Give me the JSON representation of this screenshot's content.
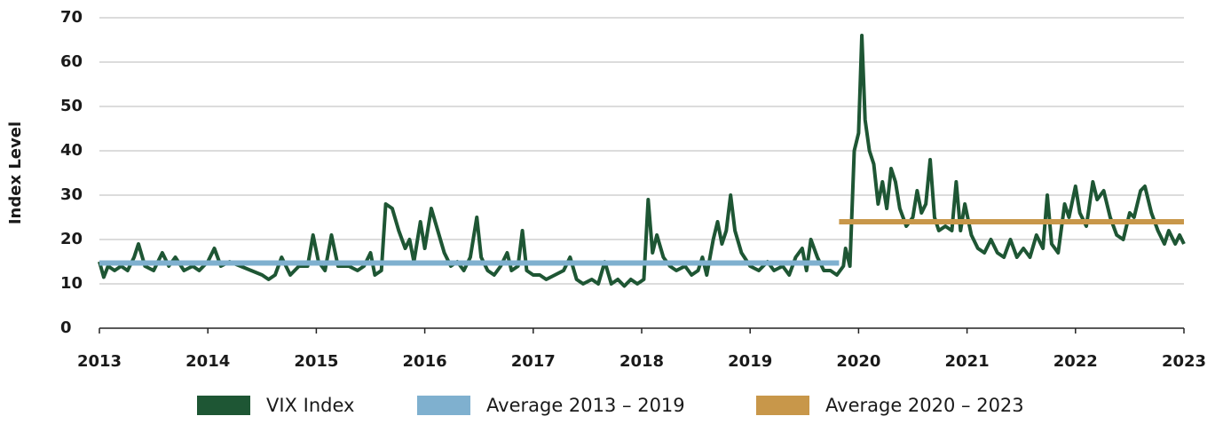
{
  "chart_data": {
    "type": "line",
    "y_label": "Index Level",
    "xlim": [
      2013,
      2023
    ],
    "xticks": [
      2013,
      2014,
      2015,
      2016,
      2017,
      2018,
      2019,
      2020,
      2021,
      2022,
      2023
    ],
    "ylim": [
      0,
      70
    ],
    "yticks": [
      0,
      10,
      20,
      30,
      40,
      50,
      60,
      70
    ],
    "grid": true,
    "series": [
      {
        "name": "VIX Index",
        "color": "#1e5634",
        "x": [
          2013.0,
          2013.04,
          2013.08,
          2013.14,
          2013.2,
          2013.26,
          2013.32,
          2013.36,
          2013.42,
          2013.5,
          2013.58,
          2013.64,
          2013.7,
          2013.78,
          2013.86,
          2013.92,
          2014.0,
          2014.06,
          2014.12,
          2014.2,
          2014.3,
          2014.4,
          2014.5,
          2014.56,
          2014.62,
          2014.68,
          2014.76,
          2014.84,
          2014.92,
          2014.97,
          2015.02,
          2015.08,
          2015.14,
          2015.2,
          2015.3,
          2015.38,
          2015.44,
          2015.5,
          2015.54,
          2015.6,
          2015.64,
          2015.7,
          2015.76,
          2015.82,
          2015.86,
          2015.9,
          2015.96,
          2016.0,
          2016.06,
          2016.12,
          2016.18,
          2016.24,
          2016.3,
          2016.36,
          2016.42,
          2016.48,
          2016.52,
          2016.58,
          2016.64,
          2016.7,
          2016.76,
          2016.8,
          2016.86,
          2016.9,
          2016.94,
          2017.0,
          2017.06,
          2017.12,
          2017.2,
          2017.28,
          2017.34,
          2017.4,
          2017.46,
          2017.54,
          2017.6,
          2017.66,
          2017.72,
          2017.78,
          2017.84,
          2017.9,
          2017.96,
          2018.02,
          2018.06,
          2018.1,
          2018.14,
          2018.2,
          2018.26,
          2018.32,
          2018.4,
          2018.46,
          2018.52,
          2018.56,
          2018.6,
          2018.66,
          2018.7,
          2018.74,
          2018.78,
          2018.82,
          2018.86,
          2018.92,
          2019.0,
          2019.08,
          2019.16,
          2019.22,
          2019.3,
          2019.36,
          2019.42,
          2019.48,
          2019.52,
          2019.56,
          2019.62,
          2019.68,
          2019.74,
          2019.8,
          2019.86,
          2019.88,
          2019.92,
          2019.96,
          2020.0,
          2020.03,
          2020.06,
          2020.1,
          2020.14,
          2020.18,
          2020.22,
          2020.26,
          2020.3,
          2020.34,
          2020.38,
          2020.44,
          2020.5,
          2020.54,
          2020.58,
          2020.62,
          2020.66,
          2020.7,
          2020.74,
          2020.8,
          2020.86,
          2020.9,
          2020.94,
          2020.98,
          2021.04,
          2021.1,
          2021.16,
          2021.22,
          2021.28,
          2021.34,
          2021.4,
          2021.46,
          2021.52,
          2021.58,
          2021.64,
          2021.7,
          2021.74,
          2021.78,
          2021.84,
          2021.9,
          2021.94,
          2022.0,
          2022.04,
          2022.1,
          2022.16,
          2022.2,
          2022.26,
          2022.32,
          2022.38,
          2022.44,
          2022.5,
          2022.54,
          2022.6,
          2022.64,
          2022.7,
          2022.76,
          2022.82,
          2022.86,
          2022.92,
          2022.96,
          2023.0
        ],
        "values": [
          15,
          11.5,
          14,
          13,
          14,
          13,
          16,
          19,
          14,
          13,
          17,
          14,
          16,
          13,
          14,
          13,
          15,
          18,
          14,
          15,
          14,
          13,
          12,
          11,
          12,
          16,
          12,
          14,
          14,
          21,
          15,
          13,
          21,
          14,
          14,
          13,
          14,
          17,
          12,
          13,
          28,
          27,
          22,
          18,
          20,
          15,
          24,
          18,
          27,
          22,
          17,
          14,
          15,
          13,
          16,
          25,
          16,
          13,
          12,
          14,
          17,
          13,
          14,
          22,
          13,
          12,
          12,
          11,
          12,
          13,
          16,
          11,
          10,
          11,
          10,
          15,
          10,
          11,
          9.5,
          11,
          10,
          11,
          29,
          17,
          21,
          16,
          14,
          13,
          14,
          12,
          13,
          16,
          12,
          20,
          24,
          19,
          22,
          30,
          22,
          17,
          14,
          13,
          15,
          13,
          14,
          12,
          16,
          18,
          13,
          20,
          16,
          13,
          13,
          12,
          14,
          18,
          14,
          40,
          44,
          66,
          47,
          40,
          37,
          28,
          33,
          27,
          36,
          33,
          27,
          23,
          25,
          31,
          26,
          28,
          38,
          25,
          22,
          23,
          22,
          33,
          22,
          28,
          21,
          18,
          17,
          20,
          17,
          16,
          20,
          16,
          18,
          16,
          21,
          18,
          30,
          19,
          17,
          28,
          25,
          32,
          26,
          23,
          33,
          29,
          31,
          25,
          21,
          20,
          26,
          25,
          31,
          32,
          26,
          22,
          19,
          22,
          19,
          21,
          19
        ]
      },
      {
        "name": "Average 2013 – 2019",
        "color": "#7fb0cf",
        "x": [
          2013,
          2019.82
        ],
        "values": [
          14.7,
          14.7
        ]
      },
      {
        "name": "Average 2020 – 2023",
        "color": "#c8974a",
        "x": [
          2019.82,
          2023
        ],
        "values": [
          24,
          24
        ]
      }
    ]
  }
}
